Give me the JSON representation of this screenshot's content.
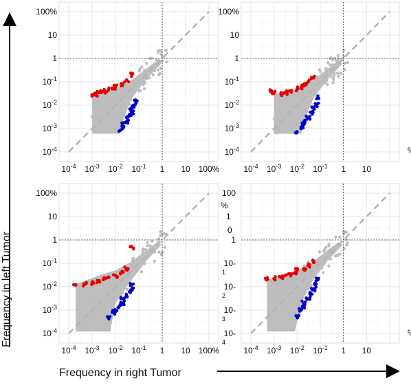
{
  "figure": {
    "ylabel": "Frequency in left Tumor",
    "xlabel": "Frequency in right Tumor"
  },
  "colors": {
    "grid": "#ebebeb",
    "point_neutral": "#bdbdbd",
    "point_up": "#e60000",
    "point_down": "#0000cc",
    "diagonal": "#b3b3b3",
    "threshold_line": "#333333"
  },
  "chart_data": [
    {
      "type": "scatter",
      "panel": "top-left",
      "x_scale": "log10",
      "y_scale": "log10",
      "xlim": [
        0.0001,
        100
      ],
      "ylim": [
        0.0001,
        100
      ],
      "x_tick_labels": [
        "10-4",
        "10-3",
        "10-2",
        "10-1",
        "1",
        "10",
        "100%"
      ],
      "y_tick_labels": [
        "10-4",
        "10-3",
        "10-2",
        "10-1",
        "1",
        "10",
        "100%"
      ],
      "diagonal": "y=x dashed",
      "threshold_lines": {
        "x": 1,
        "y": 1
      },
      "series": [
        {
          "color": "red",
          "x": [
            0.001,
            0.0015,
            0.002,
            0.003,
            0.005,
            0.008,
            0.01,
            0.02,
            0.03,
            0.05
          ],
          "y": [
            0.028,
            0.03,
            0.035,
            0.04,
            0.045,
            0.05,
            0.06,
            0.08,
            0.12,
            0.2
          ]
        },
        {
          "color": "blue",
          "x": [
            0.015,
            0.02,
            0.02,
            0.03,
            0.03,
            0.04,
            0.05,
            0.05,
            0.06,
            0.07
          ],
          "y": [
            0.0008,
            0.001,
            0.0015,
            0.002,
            0.003,
            0.004,
            0.005,
            0.008,
            0.01,
            0.015
          ]
        }
      ]
    },
    {
      "type": "scatter",
      "panel": "top-right",
      "x_scale": "log10",
      "y_scale": "log10",
      "xlim": [
        0.0001,
        100
      ],
      "ylim": [
        0.0001,
        100
      ],
      "x_tick_labels": [
        "10-4",
        "10-3",
        "10-2",
        "10-1",
        "1",
        "10",
        ""
      ],
      "y_tick_labels": [
        "10-4",
        "10-3",
        "10-2",
        "10-1",
        "1",
        "10",
        "100%"
      ],
      "diagonal": "y=x dashed",
      "threshold_lines": {
        "x": 1,
        "y": 1
      },
      "series": [
        {
          "color": "red",
          "x": [
            0.0008,
            0.001,
            0.002,
            0.003,
            0.005,
            0.01,
            0.015,
            0.02,
            0.03,
            0.05
          ],
          "y": [
            0.04,
            0.035,
            0.03,
            0.035,
            0.04,
            0.05,
            0.06,
            0.08,
            0.1,
            0.15
          ]
        },
        {
          "color": "blue",
          "x": [
            0.01,
            0.015,
            0.02,
            0.02,
            0.03,
            0.04,
            0.05,
            0.07,
            0.08
          ],
          "y": [
            0.0007,
            0.001,
            0.0015,
            0.002,
            0.003,
            0.005,
            0.008,
            0.01,
            0.02
          ]
        }
      ]
    },
    {
      "type": "scatter",
      "panel": "bottom-left",
      "x_scale": "log10",
      "y_scale": "log10",
      "xlim": [
        0.0001,
        100
      ],
      "ylim": [
        0.0001,
        100
      ],
      "x_tick_labels": [
        "10-4",
        "10-3",
        "10-2",
        "10-1",
        "1",
        "10",
        "100%"
      ],
      "y_tick_labels": [
        "10-4",
        "10-3",
        "10-2",
        "10-1",
        "1",
        "10",
        "100%"
      ],
      "diagonal": "y=x dashed",
      "threshold_lines": {
        "x": 1,
        "y": 1
      },
      "series": [
        {
          "color": "red",
          "x": [
            0.0002,
            0.0005,
            0.001,
            0.002,
            0.003,
            0.005,
            0.01,
            0.02,
            0.03,
            0.05
          ],
          "y": [
            0.012,
            0.013,
            0.015,
            0.018,
            0.02,
            0.025,
            0.03,
            0.04,
            0.06,
            0.5
          ]
        },
        {
          "color": "blue",
          "x": [
            0.005,
            0.008,
            0.01,
            0.015,
            0.02,
            0.02,
            0.03,
            0.04,
            0.05,
            0.05
          ],
          "y": [
            0.0005,
            0.0008,
            0.001,
            0.0015,
            0.002,
            0.003,
            0.004,
            0.006,
            0.008,
            0.012
          ]
        }
      ]
    },
    {
      "type": "scatter",
      "panel": "bottom-right",
      "x_scale": "log10",
      "y_scale": "log10",
      "xlim": [
        0.0001,
        100
      ],
      "ylim": [
        0.0001,
        100
      ],
      "x_tick_labels": [
        "10-4",
        "10-3",
        "10-2",
        "10-1",
        "1",
        "10",
        ""
      ],
      "y_tick_labels": [
        "10-",
        "10-",
        "10-",
        "1",
        "100"
      ],
      "y_tick_superscripts": [
        "4",
        "3",
        "2",
        "1",
        "0",
        "%"
      ],
      "diagonal": "y=x dashed",
      "threshold_lines": {
        "x": 1,
        "y": 1
      },
      "series": [
        {
          "color": "red",
          "x": [
            0.0005,
            0.001,
            0.002,
            0.003,
            0.005,
            0.008,
            0.01,
            0.02,
            0.03,
            0.05
          ],
          "y": [
            0.02,
            0.022,
            0.025,
            0.03,
            0.035,
            0.04,
            0.05,
            0.06,
            0.08,
            0.12
          ]
        },
        {
          "color": "blue",
          "x": [
            0.01,
            0.015,
            0.02,
            0.02,
            0.03,
            0.04,
            0.05,
            0.06,
            0.08
          ],
          "y": [
            0.0005,
            0.001,
            0.0015,
            0.002,
            0.003,
            0.005,
            0.008,
            0.012,
            0.02
          ]
        }
      ]
    }
  ]
}
